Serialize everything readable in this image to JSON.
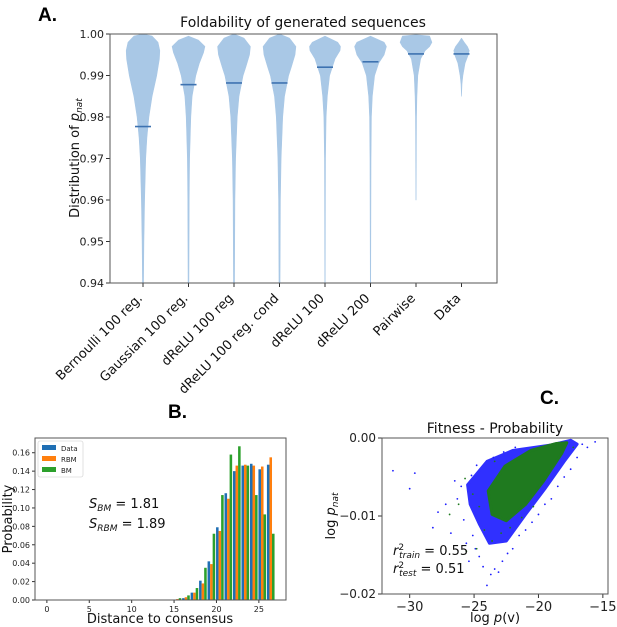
{
  "panels": {
    "a": "A.",
    "b": "B.",
    "c": "C."
  },
  "chart_data": [
    {
      "type": "violin",
      "title": "Foldability of generated sequences",
      "ylabel_prefix": "Distribution of ",
      "ylabel_var": "p",
      "ylabel_sub": "nat",
      "ylim": [
        0.94,
        1.0
      ],
      "yticks": [
        "0.94",
        "0.95",
        "0.96",
        "0.97",
        "0.98",
        "0.99",
        "1.00"
      ],
      "color": "#a9c8e6",
      "median_color": "#3d72b0",
      "violins": [
        {
          "label": "Bernoulli 100 reg.",
          "median": 0.9777,
          "profile": [
            [
              1.0,
              0
            ],
            [
              0.9995,
              0.2
            ],
            [
              0.998,
              0.33
            ],
            [
              0.996,
              0.37
            ],
            [
              0.994,
              0.36
            ],
            [
              0.99,
              0.3
            ],
            [
              0.985,
              0.2
            ],
            [
              0.98,
              0.13
            ],
            [
              0.975,
              0.085
            ],
            [
              0.97,
              0.06
            ],
            [
              0.96,
              0.035
            ],
            [
              0.95,
              0.02
            ],
            [
              0.94,
              0.01
            ]
          ]
        },
        {
          "label": "Gaussian 100 reg.",
          "median": 0.9878,
          "profile": [
            [
              0.9995,
              0
            ],
            [
              0.9985,
              0.22
            ],
            [
              0.997,
              0.36
            ],
            [
              0.9955,
              0.33
            ],
            [
              0.993,
              0.24
            ],
            [
              0.99,
              0.16
            ],
            [
              0.985,
              0.08
            ],
            [
              0.98,
              0.05
            ],
            [
              0.97,
              0.025
            ],
            [
              0.96,
              0.015
            ],
            [
              0.94,
              0.008
            ]
          ]
        },
        {
          "label": "dReLU 100 reg",
          "median": 0.9882,
          "profile": [
            [
              1.0,
              0
            ],
            [
              0.999,
              0.22
            ],
            [
              0.997,
              0.36
            ],
            [
              0.995,
              0.34
            ],
            [
              0.992,
              0.26
            ],
            [
              0.99,
              0.2
            ],
            [
              0.985,
              0.11
            ],
            [
              0.98,
              0.07
            ],
            [
              0.97,
              0.035
            ],
            [
              0.96,
              0.02
            ],
            [
              0.94,
              0.01
            ]
          ]
        },
        {
          "label": "dReLU 100 reg. cond",
          "median": 0.9882,
          "profile": [
            [
              1.0,
              0
            ],
            [
              0.999,
              0.22
            ],
            [
              0.997,
              0.36
            ],
            [
              0.995,
              0.34
            ],
            [
              0.992,
              0.26
            ],
            [
              0.99,
              0.2
            ],
            [
              0.985,
              0.11
            ],
            [
              0.98,
              0.07
            ],
            [
              0.97,
              0.035
            ],
            [
              0.96,
              0.02
            ],
            [
              0.94,
              0.01
            ]
          ]
        },
        {
          "label": "dReLU 100",
          "median": 0.992,
          "profile": [
            [
              0.9995,
              0
            ],
            [
              0.998,
              0.28
            ],
            [
              0.997,
              0.34
            ],
            [
              0.996,
              0.33
            ],
            [
              0.994,
              0.22
            ],
            [
              0.99,
              0.1
            ],
            [
              0.985,
              0.05
            ],
            [
              0.98,
              0.025
            ],
            [
              0.97,
              0.012
            ],
            [
              0.94,
              0.004
            ]
          ]
        },
        {
          "label": "dReLU 200",
          "median": 0.9933,
          "profile": [
            [
              0.9995,
              0
            ],
            [
              0.998,
              0.3
            ],
            [
              0.997,
              0.35
            ],
            [
              0.995,
              0.3
            ],
            [
              0.993,
              0.18
            ],
            [
              0.99,
              0.09
            ],
            [
              0.985,
              0.04
            ],
            [
              0.98,
              0.02
            ],
            [
              0.97,
              0.01
            ],
            [
              0.94,
              0.004
            ]
          ]
        },
        {
          "label": "Pairwise",
          "median": 0.9952,
          "profile": [
            [
              0.9998,
              0
            ],
            [
              0.9995,
              0.3
            ],
            [
              0.998,
              0.35
            ],
            [
              0.997,
              0.3
            ],
            [
              0.996,
              0.2
            ],
            [
              0.994,
              0.1
            ],
            [
              0.99,
              0.04
            ],
            [
              0.985,
              0.02
            ],
            [
              0.98,
              0.012
            ],
            [
              0.97,
              0.006
            ],
            [
              0.96,
              0.003
            ]
          ]
        },
        {
          "label": "Data",
          "median": 0.9952,
          "profile": [
            [
              0.999,
              0
            ],
            [
              0.998,
              0.06
            ],
            [
              0.997,
              0.13
            ],
            [
              0.996,
              0.17
            ],
            [
              0.995,
              0.15
            ],
            [
              0.993,
              0.08
            ],
            [
              0.99,
              0.03
            ],
            [
              0.988,
              0.012
            ],
            [
              0.985,
              0
            ]
          ]
        }
      ]
    },
    {
      "type": "bar",
      "xlabel": "Distance to consensus",
      "ylabel": "Probability",
      "xlim": [
        -1.4,
        28.2
      ],
      "ylim": [
        0,
        0.176
      ],
      "xticks": [
        0,
        5,
        10,
        15,
        20,
        25
      ],
      "yticks": [
        "0.00",
        "0.02",
        "0.04",
        "0.06",
        "0.08",
        "0.10",
        "0.12",
        "0.14",
        "0.16"
      ],
      "legend": "top-left",
      "categories": [
        15,
        16,
        17,
        18,
        19,
        20,
        21,
        22,
        23,
        24,
        25,
        26
      ],
      "series": [
        {
          "name": "Data",
          "color": "#1f6fb4",
          "values": [
            0.0,
            0.002,
            0.008,
            0.021,
            0.042,
            0.079,
            0.116,
            0.14,
            0.146,
            0.148,
            0.142,
            0.147
          ]
        },
        {
          "name": "RBM",
          "color": "#ff7f0e",
          "values": [
            0.001,
            0.003,
            0.008,
            0.018,
            0.039,
            0.075,
            0.11,
            0.146,
            0.147,
            0.146,
            0.145,
            0.155
          ]
        },
        {
          "name": "BM",
          "color": "#2ca02c",
          "values": [
            0.002,
            0.005,
            0.013,
            0.035,
            0.072,
            0.114,
            0.158,
            0.167,
            0.146,
            0.114,
            0.093,
            0.072
          ]
        }
      ],
      "annotations": [
        {
          "var": "S",
          "sub": "BM",
          "value": " = 1.81"
        },
        {
          "var": "S",
          "sub": "RBM",
          "value": " = 1.89"
        }
      ]
    },
    {
      "type": "scatter",
      "title": "Fitness - Probability",
      "xlabel_prefix": "log ",
      "xlabel_var": "p",
      "xlabel_suffix": "(v)",
      "ylabel_prefix": "log ",
      "ylabel_var": "p",
      "ylabel_sub": "nat",
      "xlim": [
        -32.15,
        -14.6
      ],
      "ylim": [
        -0.02,
        0.0
      ],
      "xticks": [
        "−30",
        "−25",
        "−20",
        "−15"
      ],
      "xtick_values": [
        -30,
        -25,
        -20,
        -15
      ],
      "yticks": [
        "−0.02",
        "−0.01",
        "0.00"
      ],
      "ytick_values": [
        -0.02,
        -0.01,
        0.0
      ],
      "series": [
        {
          "color": "#1a1aff",
          "dense_region": [
            [
              -25.5,
              -0.006
            ],
            [
              -24,
              -0.003
            ],
            [
              -22,
              -0.0016
            ],
            [
              -19,
              -0.0009
            ],
            [
              -17.5,
              -0.0003
            ],
            [
              -17,
              -0.0008
            ],
            [
              -18,
              -0.003
            ],
            [
              -19.5,
              -0.0065
            ],
            [
              -21,
              -0.0098
            ],
            [
              -22.5,
              -0.0132
            ],
            [
              -23.8,
              -0.0135
            ],
            [
              -24.6,
              -0.011
            ],
            [
              -25.3,
              -0.0085
            ]
          ],
          "points": [
            [
              -31.3,
              -0.0042
            ],
            [
              -29.6,
              -0.0045
            ],
            [
              -30,
              -0.0065
            ],
            [
              -28.2,
              -0.0115
            ],
            [
              -27.8,
              -0.0095
            ],
            [
              -27.2,
              -0.0085
            ],
            [
              -26.8,
              -0.0122
            ],
            [
              -26.3,
              -0.0078
            ],
            [
              -26,
              -0.0062
            ],
            [
              -25.8,
              -0.0105
            ],
            [
              -25.6,
              -0.0135
            ],
            [
              -25.4,
              -0.0158
            ],
            [
              -25.1,
              -0.0125
            ],
            [
              -24.9,
              -0.0142
            ],
            [
              -24.6,
              -0.0152
            ],
            [
              -24.3,
              -0.0165
            ],
            [
              -24,
              -0.0189
            ],
            [
              -23.7,
              -0.0175
            ],
            [
              -23.4,
              -0.0168
            ],
            [
              -23.1,
              -0.0172
            ],
            [
              -22.8,
              -0.0158
            ],
            [
              -22.4,
              -0.0148
            ],
            [
              -22,
              -0.0142
            ],
            [
              -21.5,
              -0.0125
            ],
            [
              -21,
              -0.0118
            ],
            [
              -20.5,
              -0.0108
            ],
            [
              -20,
              -0.0098
            ],
            [
              -19.5,
              -0.0085
            ],
            [
              -19,
              -0.0078
            ],
            [
              -18.5,
              -0.0062
            ],
            [
              -18,
              -0.005
            ],
            [
              -17.5,
              -0.004
            ],
            [
              -17,
              -0.0025
            ],
            [
              -16.6,
              -0.0008
            ],
            [
              -15.6,
              -0.0005
            ],
            [
              -16.2,
              -0.0012
            ],
            [
              -24.8,
              -0.0035
            ],
            [
              -25.2,
              -0.0048
            ],
            [
              -26.5,
              -0.0055
            ],
            [
              -23.5,
              -0.0025
            ],
            [
              -22.7,
              -0.0018
            ],
            [
              -21.8,
              -0.0012
            ]
          ]
        },
        {
          "color": "#1f7a1f",
          "dense_region": [
            [
              -23.9,
              -0.0068
            ],
            [
              -22.6,
              -0.0036
            ],
            [
              -20.6,
              -0.0016
            ],
            [
              -18.6,
              -0.0007
            ],
            [
              -17.8,
              -0.0006
            ],
            [
              -18.2,
              -0.002
            ],
            [
              -19.6,
              -0.0055
            ],
            [
              -21,
              -0.0085
            ],
            [
              -22.5,
              -0.0106
            ],
            [
              -23.6,
              -0.0098
            ]
          ],
          "points": [
            [
              -26.9,
              -0.0098
            ],
            [
              -26.2,
              -0.0085
            ],
            [
              -25.7,
              -0.0052
            ],
            [
              -25.1,
              -0.0072
            ],
            [
              -24.6,
              -0.0088
            ],
            [
              -24.2,
              -0.0118
            ],
            [
              -23.6,
              -0.0132
            ],
            [
              -22.9,
              -0.0122
            ],
            [
              -22.2,
              -0.0115
            ],
            [
              -21.3,
              -0.0102
            ],
            [
              -20.4,
              -0.0088
            ],
            [
              -24.8,
              -0.0142
            ],
            [
              -23.4,
              -0.003
            ],
            [
              -17.3,
              -0.0012
            ],
            [
              -25.6,
              -0.0145
            ]
          ]
        }
      ],
      "annotations": [
        {
          "var": "r",
          "sup": "2",
          "sub": "train",
          "value": " = 0.55"
        },
        {
          "var": "r",
          "sup": "2",
          "sub": "test",
          "value": " = 0.51"
        }
      ]
    }
  ]
}
